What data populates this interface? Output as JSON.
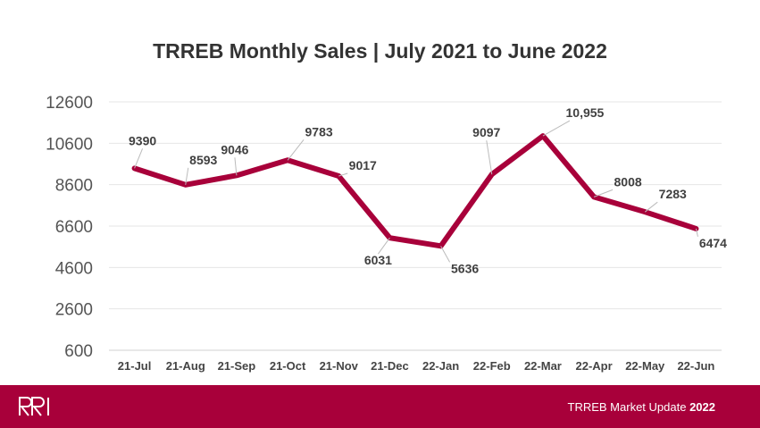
{
  "chart_data": {
    "type": "line",
    "title": "TRREB Monthly Sales | July 2021 to June 2022",
    "categories": [
      "21-Jul",
      "21-Aug",
      "21-Sep",
      "21-Oct",
      "21-Nov",
      "21-Dec",
      "22-Jan",
      "22-Feb",
      "22-Mar",
      "22-Apr",
      "22-May",
      "22-Jun"
    ],
    "series": [
      {
        "values": [
          9390,
          8593,
          9046,
          9783,
          9017,
          6031,
          5636,
          9097,
          10955,
          8008,
          7283,
          6474
        ],
        "labels": [
          "9390",
          "8593",
          "9046",
          "9783",
          "9017",
          "6031",
          "5636",
          "9097",
          "10,955",
          "8008",
          "7283",
          "6474"
        ],
        "color": "#a8003a"
      }
    ],
    "yticks": [
      "12600",
      "10600",
      "8600",
      "6600",
      "4600",
      "2600",
      "600"
    ],
    "ylim": [
      600,
      12600
    ],
    "grid": true,
    "legend": "none"
  },
  "footer": {
    "logo_text": "RRI",
    "text_main": "TRREB Market Update",
    "text_year": "2022",
    "background": "#a8003a"
  }
}
